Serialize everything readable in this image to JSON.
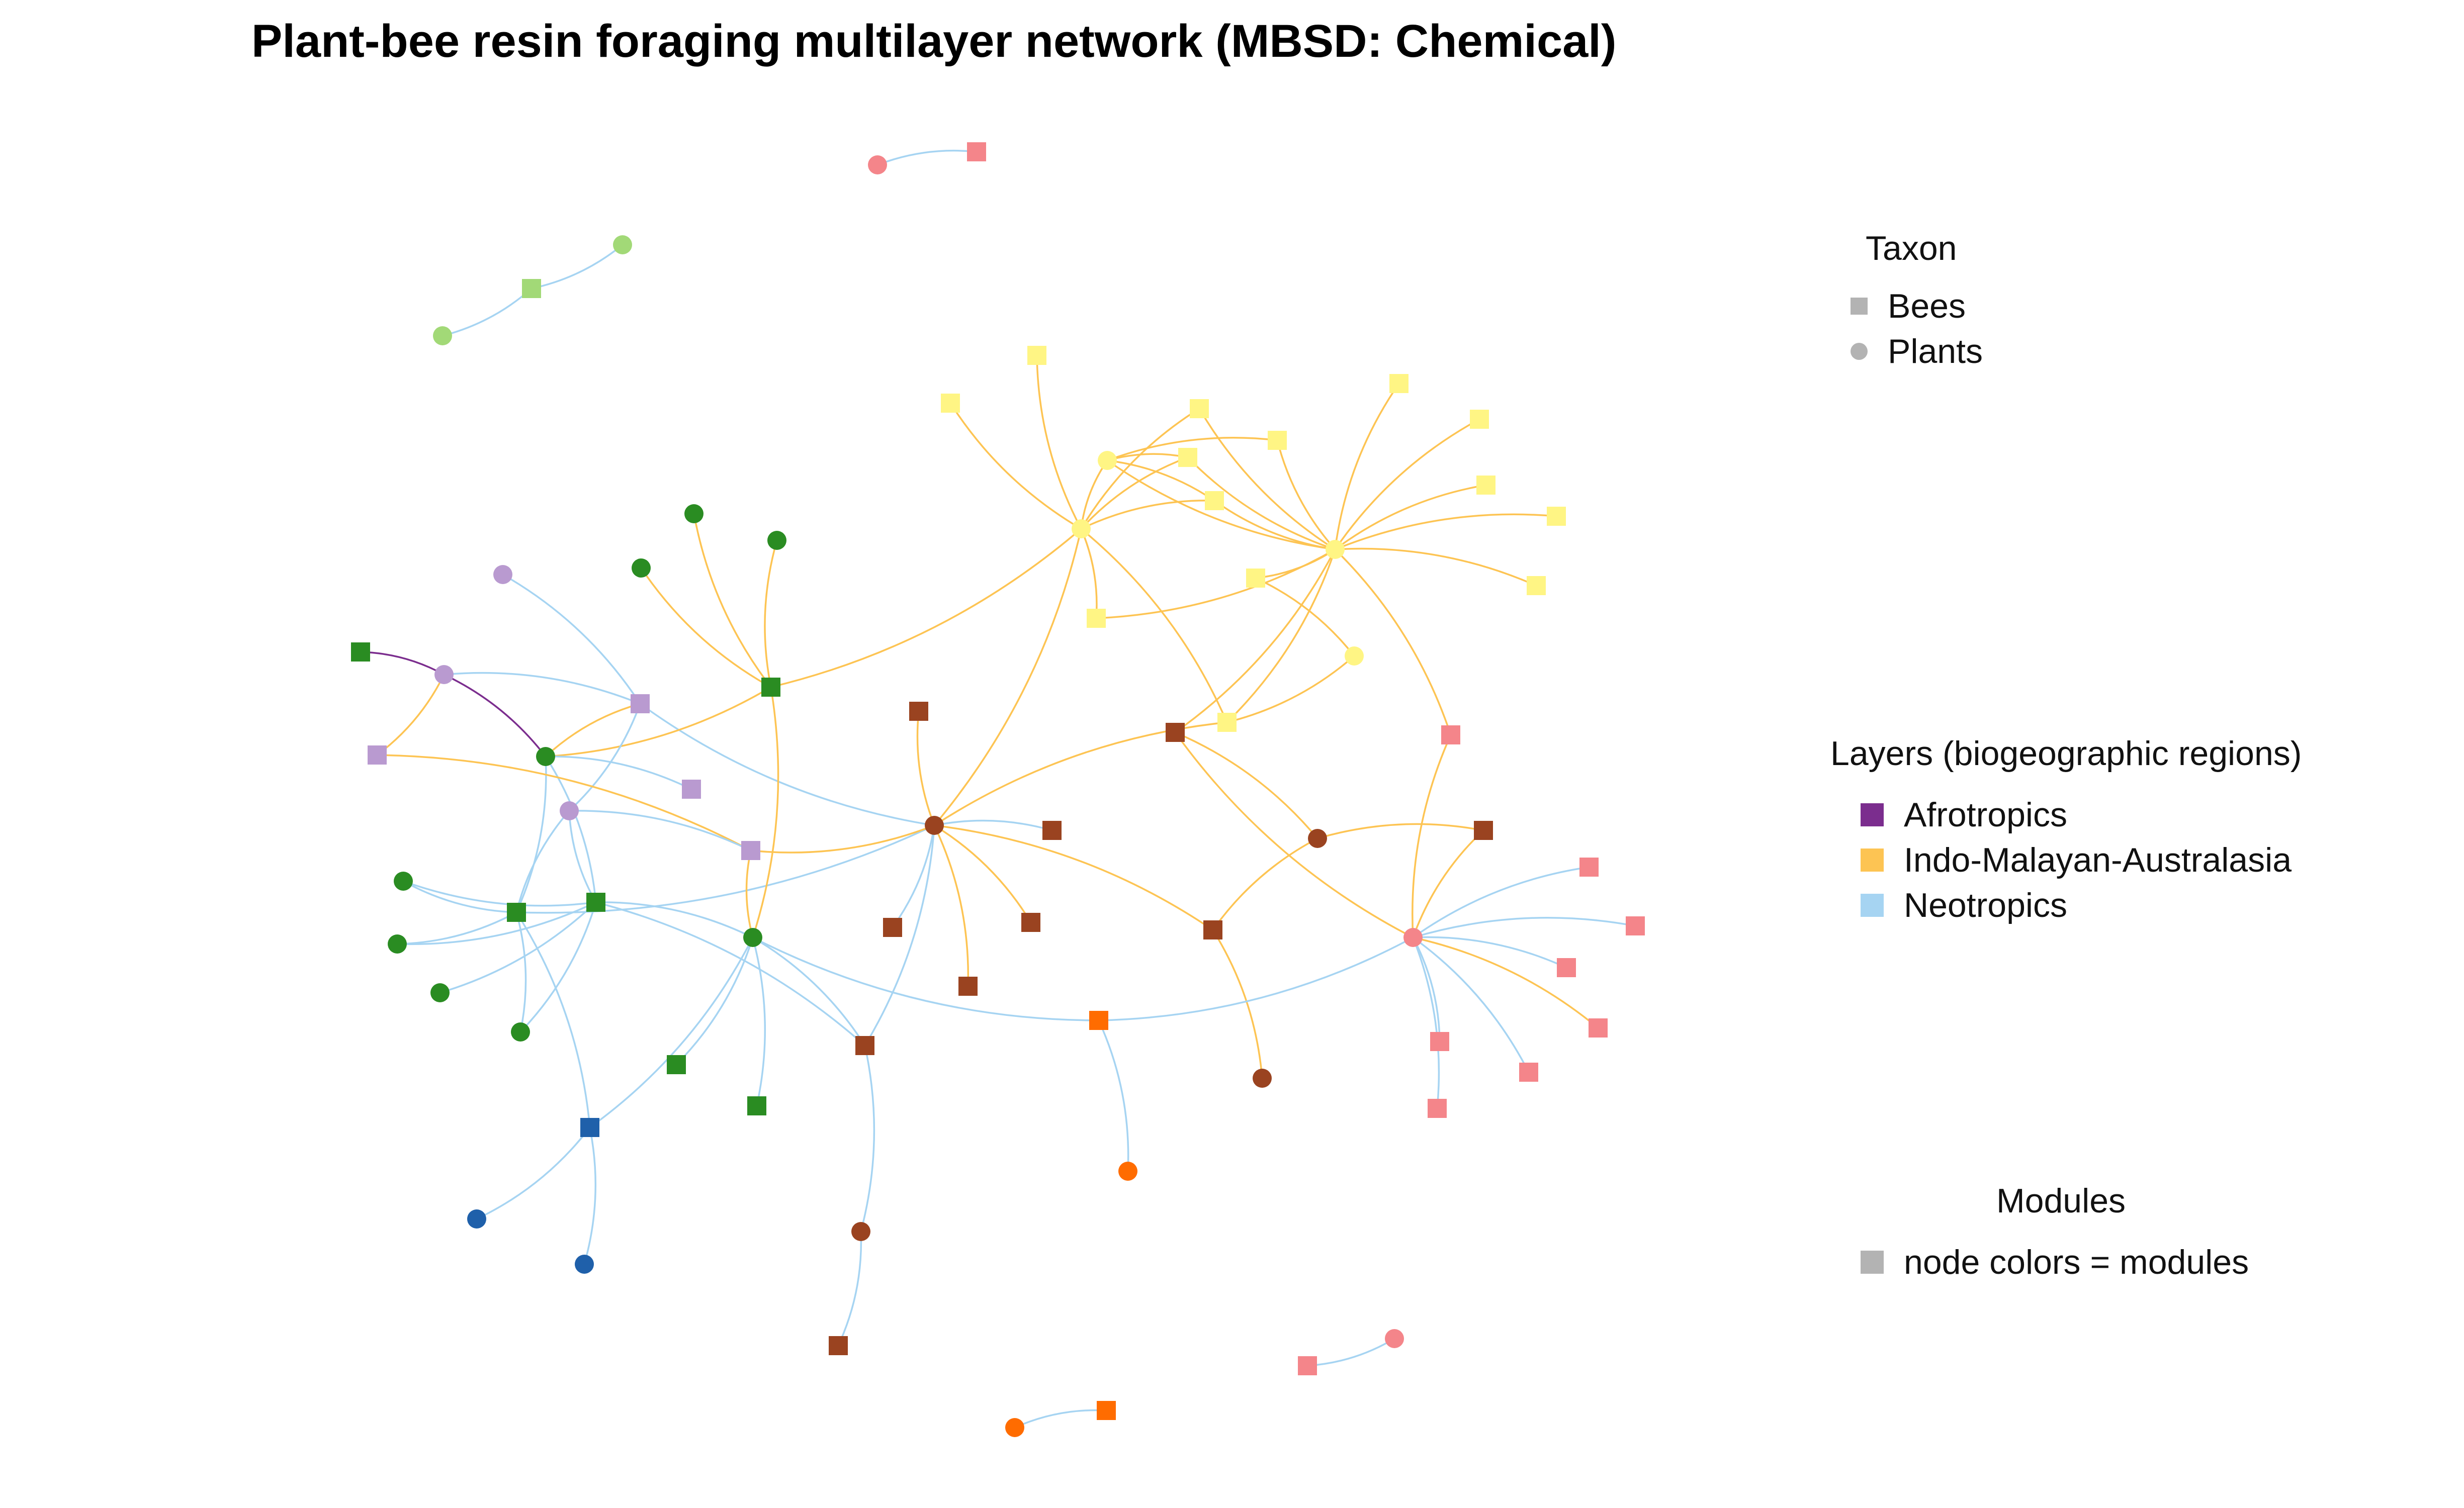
{
  "title": "Plant-bee resin foraging multilayer network (MBSD: Chemical)",
  "legend": {
    "taxon": {
      "title": "Taxon",
      "items": [
        {
          "label": "Bees",
          "shape": "square",
          "color": "#b3b3b3"
        },
        {
          "label": "Plants",
          "shape": "circle",
          "color": "#b3b3b3"
        }
      ]
    },
    "layers": {
      "title": "Layers (biogeographic regions)",
      "items": [
        {
          "label": "Afrotropics",
          "color": "#7b2d8e"
        },
        {
          "label": "Indo-Malayan-Australasia",
          "color": "#fdc453"
        },
        {
          "label": "Neotropics",
          "color": "#a6d4f2"
        }
      ]
    },
    "modules": {
      "title": "Modules",
      "items": [
        {
          "label": "node colors = modules",
          "color": "#b3b3b3"
        }
      ]
    }
  },
  "layer_colors": {
    "afro": "#7b2d8e",
    "indo": "#fdc453",
    "neo": "#a6d4f2"
  },
  "module_colors": {
    "pink": "#f4858a",
    "lgreen": "#a2d977",
    "yellow": "#fff584",
    "green": "#2a8c22",
    "lilac": "#b99ad0",
    "brown": "#9a4320",
    "orange": "#ff6c00",
    "blue": "#1f60aa"
  }
}
